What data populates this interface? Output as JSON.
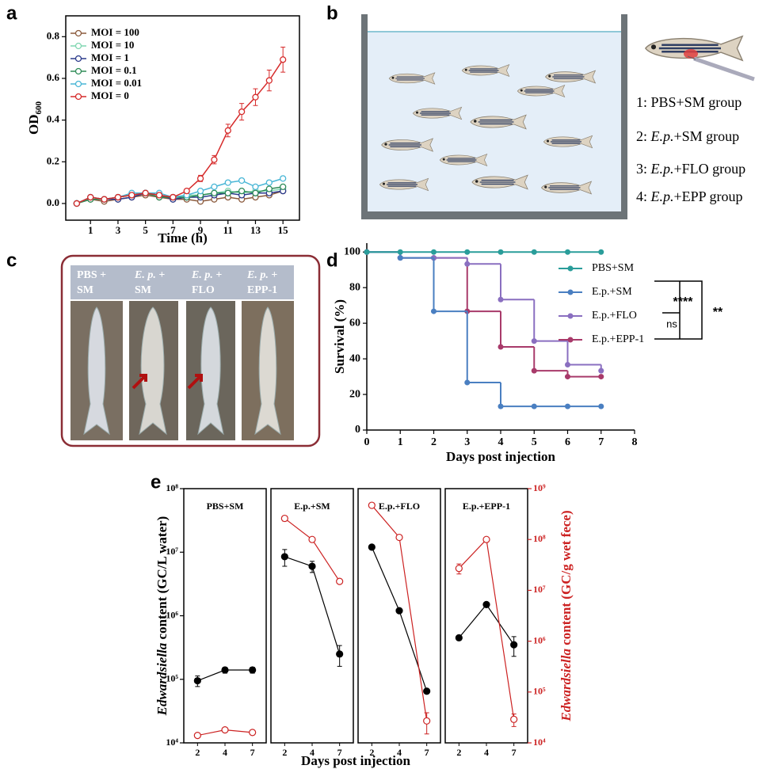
{
  "panel_labels": [
    "a",
    "b",
    "c",
    "d",
    "e"
  ],
  "panel_b": {
    "groups": [
      {
        "prefix": "1: PBS+SM group"
      },
      {
        "prefix": "2: ",
        "italic": "E.p.",
        "suffix": "+SM group"
      },
      {
        "prefix": "3: ",
        "italic": "E.p.",
        "suffix": "+FLO group"
      },
      {
        "prefix": "4: ",
        "italic": "E.p.",
        "suffix": "+EPP group"
      }
    ]
  },
  "panel_c": {
    "headers": [
      {
        "line1": "PBS +",
        "line2": "SM"
      },
      {
        "italic": "E. p.",
        "line1": " +",
        "line2": "SM"
      },
      {
        "italic": "E. p.",
        "line1": " +",
        "line2": "FLO"
      },
      {
        "italic": "E. p.",
        "line1": " +",
        "line2": "EPP-1"
      }
    ]
  },
  "chart_data": [
    {
      "type": "line",
      "xlabel": "Time (h)",
      "ylabel_main": "OD",
      "ylabel_sub": "600",
      "legend": "upper left",
      "x": [
        0,
        1,
        2,
        3,
        4,
        5,
        6,
        7,
        8,
        9,
        10,
        11,
        12,
        13,
        14,
        15
      ],
      "xlim": [
        -0.8,
        16.2
      ],
      "xticks": [
        1,
        3,
        5,
        7,
        9,
        11,
        13,
        15
      ],
      "ylim": [
        -0.08,
        0.9
      ],
      "yticks": [
        {
          "value": 0,
          "label": "0.0"
        },
        0.2,
        0.4,
        0.6,
        0.8
      ],
      "series": [
        {
          "name": "MOI = 100",
          "color": "#8b5a3c",
          "values": [
            0,
            0.02,
            0.01,
            0.02,
            0.03,
            0.04,
            0.03,
            0.02,
            0.02,
            0.01,
            0.02,
            0.03,
            0.02,
            0.03,
            0.04,
            0.06
          ]
        },
        {
          "name": "MOI = 10",
          "color": "#7fd6b0",
          "values": [
            0,
            0.03,
            0.02,
            0.03,
            0.04,
            0.05,
            0.04,
            0.03,
            0.04,
            0.04,
            0.05,
            0.06,
            0.05,
            0.06,
            0.06,
            0.07
          ]
        },
        {
          "name": "MOI = 1",
          "color": "#2b3a8c",
          "values": [
            0,
            0.03,
            0.02,
            0.02,
            0.03,
            0.05,
            0.04,
            0.02,
            0.03,
            0.03,
            0.04,
            0.05,
            0.04,
            0.05,
            0.05,
            0.06
          ]
        },
        {
          "name": "MOI = 0.1",
          "color": "#2e8b57",
          "values": [
            0,
            0.02,
            0.02,
            0.03,
            0.04,
            0.05,
            0.03,
            0.03,
            0.03,
            0.04,
            0.05,
            0.05,
            0.06,
            0.05,
            0.07,
            0.08
          ]
        },
        {
          "name": "MOI = 0.01",
          "color": "#49b6d6",
          "values": [
            0,
            0.03,
            0.02,
            0.03,
            0.05,
            0.05,
            0.05,
            0.03,
            0.04,
            0.06,
            0.08,
            0.1,
            0.11,
            0.08,
            0.1,
            0.12
          ]
        },
        {
          "name": "MOI = 0",
          "color": "#d62a2a",
          "values": [
            0,
            0.03,
            0.02,
            0.03,
            0.04,
            0.05,
            0.04,
            0.03,
            0.06,
            0.12,
            0.21,
            0.35,
            0.44,
            0.51,
            0.59,
            0.69
          ],
          "errors": [
            0,
            0.005,
            0.01,
            0.01,
            0.01,
            0.01,
            0.01,
            0.01,
            0.01,
            0.015,
            0.02,
            0.03,
            0.04,
            0.04,
            0.05,
            0.06
          ]
        }
      ]
    },
    {
      "type": "step",
      "xlabel": "Days post injection",
      "ylabel": "Survival (%)",
      "legend": "upper right",
      "x": [
        0,
        1,
        2,
        3,
        4,
        5,
        6,
        7
      ],
      "xlim": [
        0,
        8
      ],
      "xticks": [
        0,
        1,
        2,
        3,
        4,
        5,
        6,
        7,
        8
      ],
      "ylim": [
        0,
        105
      ],
      "yticks": [
        0,
        20,
        40,
        60,
        80,
        100
      ],
      "annotations": [
        "****",
        "ns",
        "**"
      ],
      "series": [
        {
          "name": "PBS+SM",
          "color": "#2a9d9a",
          "values": [
            100,
            100,
            100,
            100,
            100,
            100,
            100,
            100
          ]
        },
        {
          "name": "E.p.+SM",
          "color": "#4a7fc1",
          "values": [
            100,
            96.7,
            66.7,
            26.7,
            13.3,
            13.3,
            13.3,
            13.3
          ]
        },
        {
          "name": "E.p.+FLO",
          "color": "#8a6fc0",
          "values": [
            100,
            96.7,
            96.7,
            93.3,
            73.3,
            50,
            36.7,
            33.3
          ]
        },
        {
          "name": "E.p.+EPP-1",
          "color": "#a83a6a",
          "values": [
            100,
            96.7,
            96.7,
            66.7,
            46.7,
            33.3,
            30,
            30
          ]
        }
      ]
    },
    {
      "type": "line",
      "log_scale": true,
      "xlabel": "Days post injection",
      "ylabel_italic": "Edwardsiella",
      "ylabel_rest": " content (GC/L water)",
      "y2label_italic": "Edwardsiella",
      "y2label_rest": " content (GC/g wet fece)",
      "ylim": [
        10000,
        100000000
      ],
      "yticks": [
        {
          "value": 10000,
          "label": "10⁴"
        },
        {
          "value": 100000,
          "label": "10⁵"
        },
        {
          "value": 1000000,
          "label": "10⁶"
        },
        {
          "value": 10000000,
          "label": "10⁷"
        },
        {
          "value": 100000000,
          "label": "10⁸"
        }
      ],
      "y2lim": [
        10000,
        1000000000
      ],
      "y2ticks": [
        {
          "value": 10000,
          "label": "10⁴"
        },
        {
          "value": 100000,
          "label": "10⁵"
        },
        {
          "value": 1000000,
          "label": "10⁶"
        },
        {
          "value": 10000000,
          "label": "10⁷"
        },
        {
          "value": 100000000,
          "label": "10⁸"
        },
        {
          "value": 1000000000,
          "label": "10⁹"
        }
      ],
      "panels": [
        {
          "title": "PBS+SM",
          "categories": [
            "2",
            "4",
            "7"
          ],
          "series": [
            {
              "color": "#000000",
              "values": [
                95000,
                140000,
                140000
              ],
              "errors": [
                18000,
                15000,
                15000
              ]
            },
            {
              "color": "#cc2222",
              "axis": "y2",
              "values": [
                14000,
                18000,
                16000
              ],
              "errors": [
                1000,
                1500,
                1000
              ]
            }
          ]
        },
        {
          "title": "E.p.+SM",
          "categories": [
            "2",
            "4",
            "7"
          ],
          "series": [
            {
              "color": "#000000",
              "values": [
                8500000,
                6000000,
                250000
              ],
              "errors": [
                2500000,
                1200000,
                90000
              ]
            },
            {
              "color": "#cc2222",
              "axis": "y2",
              "values": [
                260000000,
                100000000,
                15000000
              ],
              "errors": [
                30000000,
                10000000,
                1000000
              ]
            }
          ]
        },
        {
          "title": "E.p.+FLO",
          "categories": [
            "2",
            "4",
            "7"
          ],
          "series": [
            {
              "color": "#000000",
              "values": [
                12000000,
                1200000,
                65000
              ],
              "errors": [
                1000000,
                100000,
                5000
              ]
            },
            {
              "color": "#cc2222",
              "axis": "y2",
              "values": [
                470000000,
                110000000,
                27000
              ],
              "errors": [
                30000000,
                10000000,
                12000
              ]
            }
          ]
        },
        {
          "title": "E.p.+EPP-1",
          "categories": [
            "2",
            "4",
            "7"
          ],
          "series": [
            {
              "color": "#000000",
              "values": [
                450000,
                1500000,
                350000
              ],
              "errors": [
                20000,
                50000,
                120000
              ]
            },
            {
              "color": "#cc2222",
              "axis": "y2",
              "values": [
                27000000,
                100000000,
                29000
              ],
              "errors": [
                6000000,
                10000000,
                8000
              ]
            }
          ]
        }
      ]
    }
  ]
}
